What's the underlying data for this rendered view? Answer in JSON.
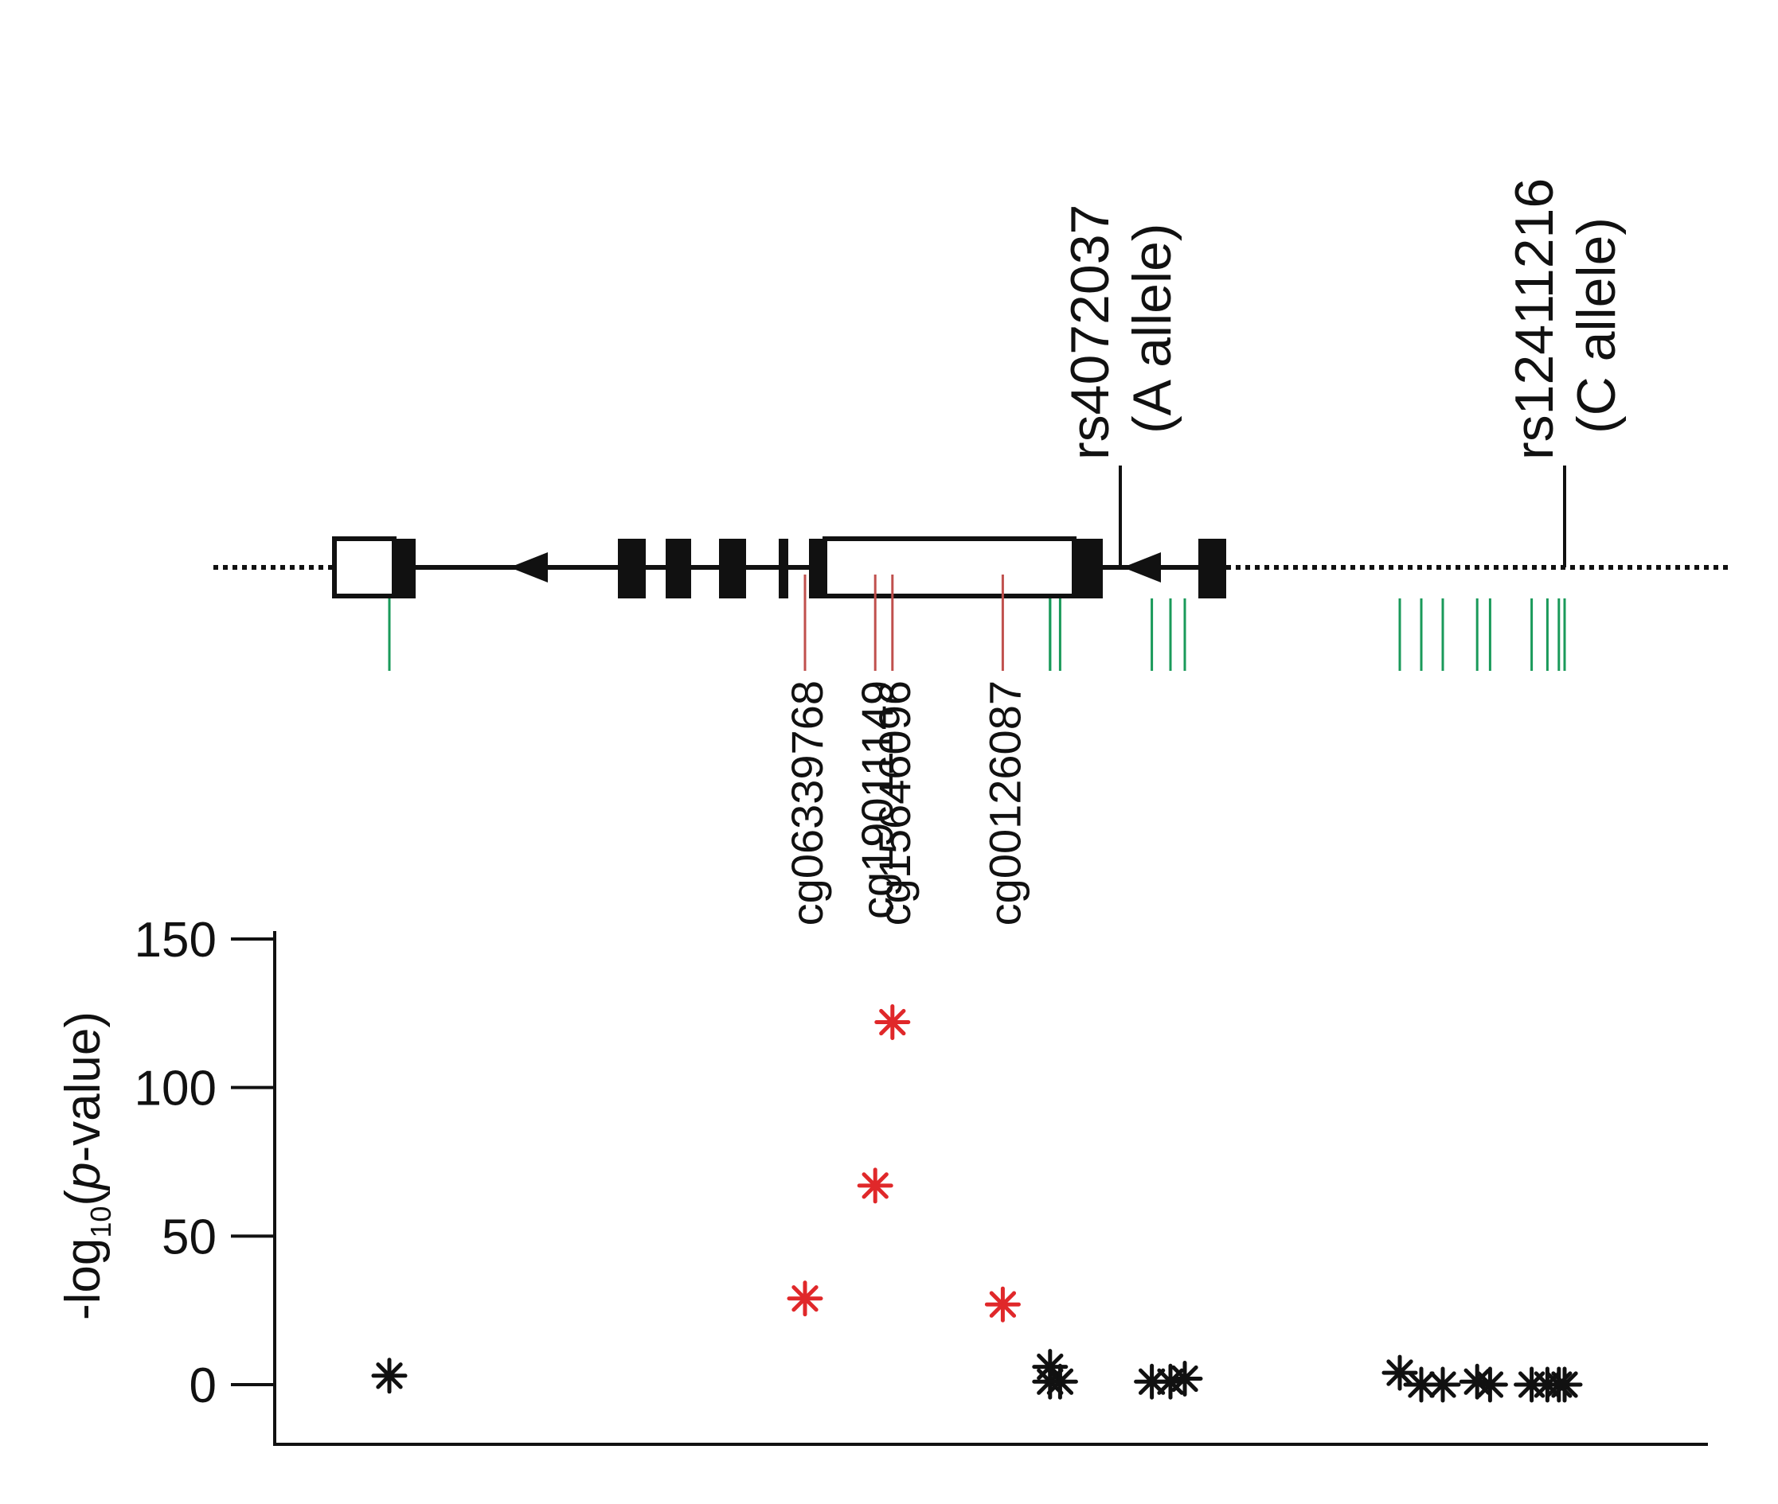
{
  "chart_data": {
    "type": "scatter",
    "title": "",
    "xlabel": "",
    "ylabel": {
      "prefix": "-log",
      "subscript": "10",
      "open": "(",
      "italic": "p",
      "suffix": "-value)"
    },
    "yticks": [
      "0",
      "50",
      "100",
      "150"
    ],
    "ytick_values": [
      0,
      50,
      100,
      150
    ],
    "ylim": [
      -20,
      172
    ],
    "position_range": [
      0,
      1
    ],
    "snps": [
      {
        "label": "rs4072037",
        "allele": "(A allele)",
        "pos": 0.59
      },
      {
        "label": "rs12411216",
        "allele": "(C allele)",
        "pos": 0.9
      }
    ],
    "named_probes": [
      {
        "label": "cg06339768",
        "pos": 0.37,
        "value": 29
      },
      {
        "label": "cg19011149",
        "pos": 0.419,
        "value": 67
      },
      {
        "label": "cg15646096",
        "pos": 0.431,
        "value": 122
      },
      {
        "label": "cg00126087",
        "pos": 0.508,
        "value": 27
      }
    ],
    "other_probes": [
      {
        "pos": 0.08,
        "value": 3
      },
      {
        "pos": 0.541,
        "value": 6
      },
      {
        "pos": 0.541,
        "value": 1
      },
      {
        "pos": 0.548,
        "value": 1
      },
      {
        "pos": 0.612,
        "value": 1
      },
      {
        "pos": 0.625,
        "value": 1
      },
      {
        "pos": 0.635,
        "value": 2
      },
      {
        "pos": 0.785,
        "value": 4
      },
      {
        "pos": 0.8,
        "value": 0
      },
      {
        "pos": 0.815,
        "value": 0
      },
      {
        "pos": 0.839,
        "value": 1
      },
      {
        "pos": 0.848,
        "value": 0
      },
      {
        "pos": 0.877,
        "value": 0
      },
      {
        "pos": 0.888,
        "value": 0
      },
      {
        "pos": 0.896,
        "value": 0
      },
      {
        "pos": 0.9,
        "value": 0
      }
    ],
    "colors": {
      "named": "#e0282a",
      "other": "#111111",
      "probe_tick": "#1a9a5a",
      "named_tick": "#c0504d",
      "gene": "#111111"
    }
  }
}
